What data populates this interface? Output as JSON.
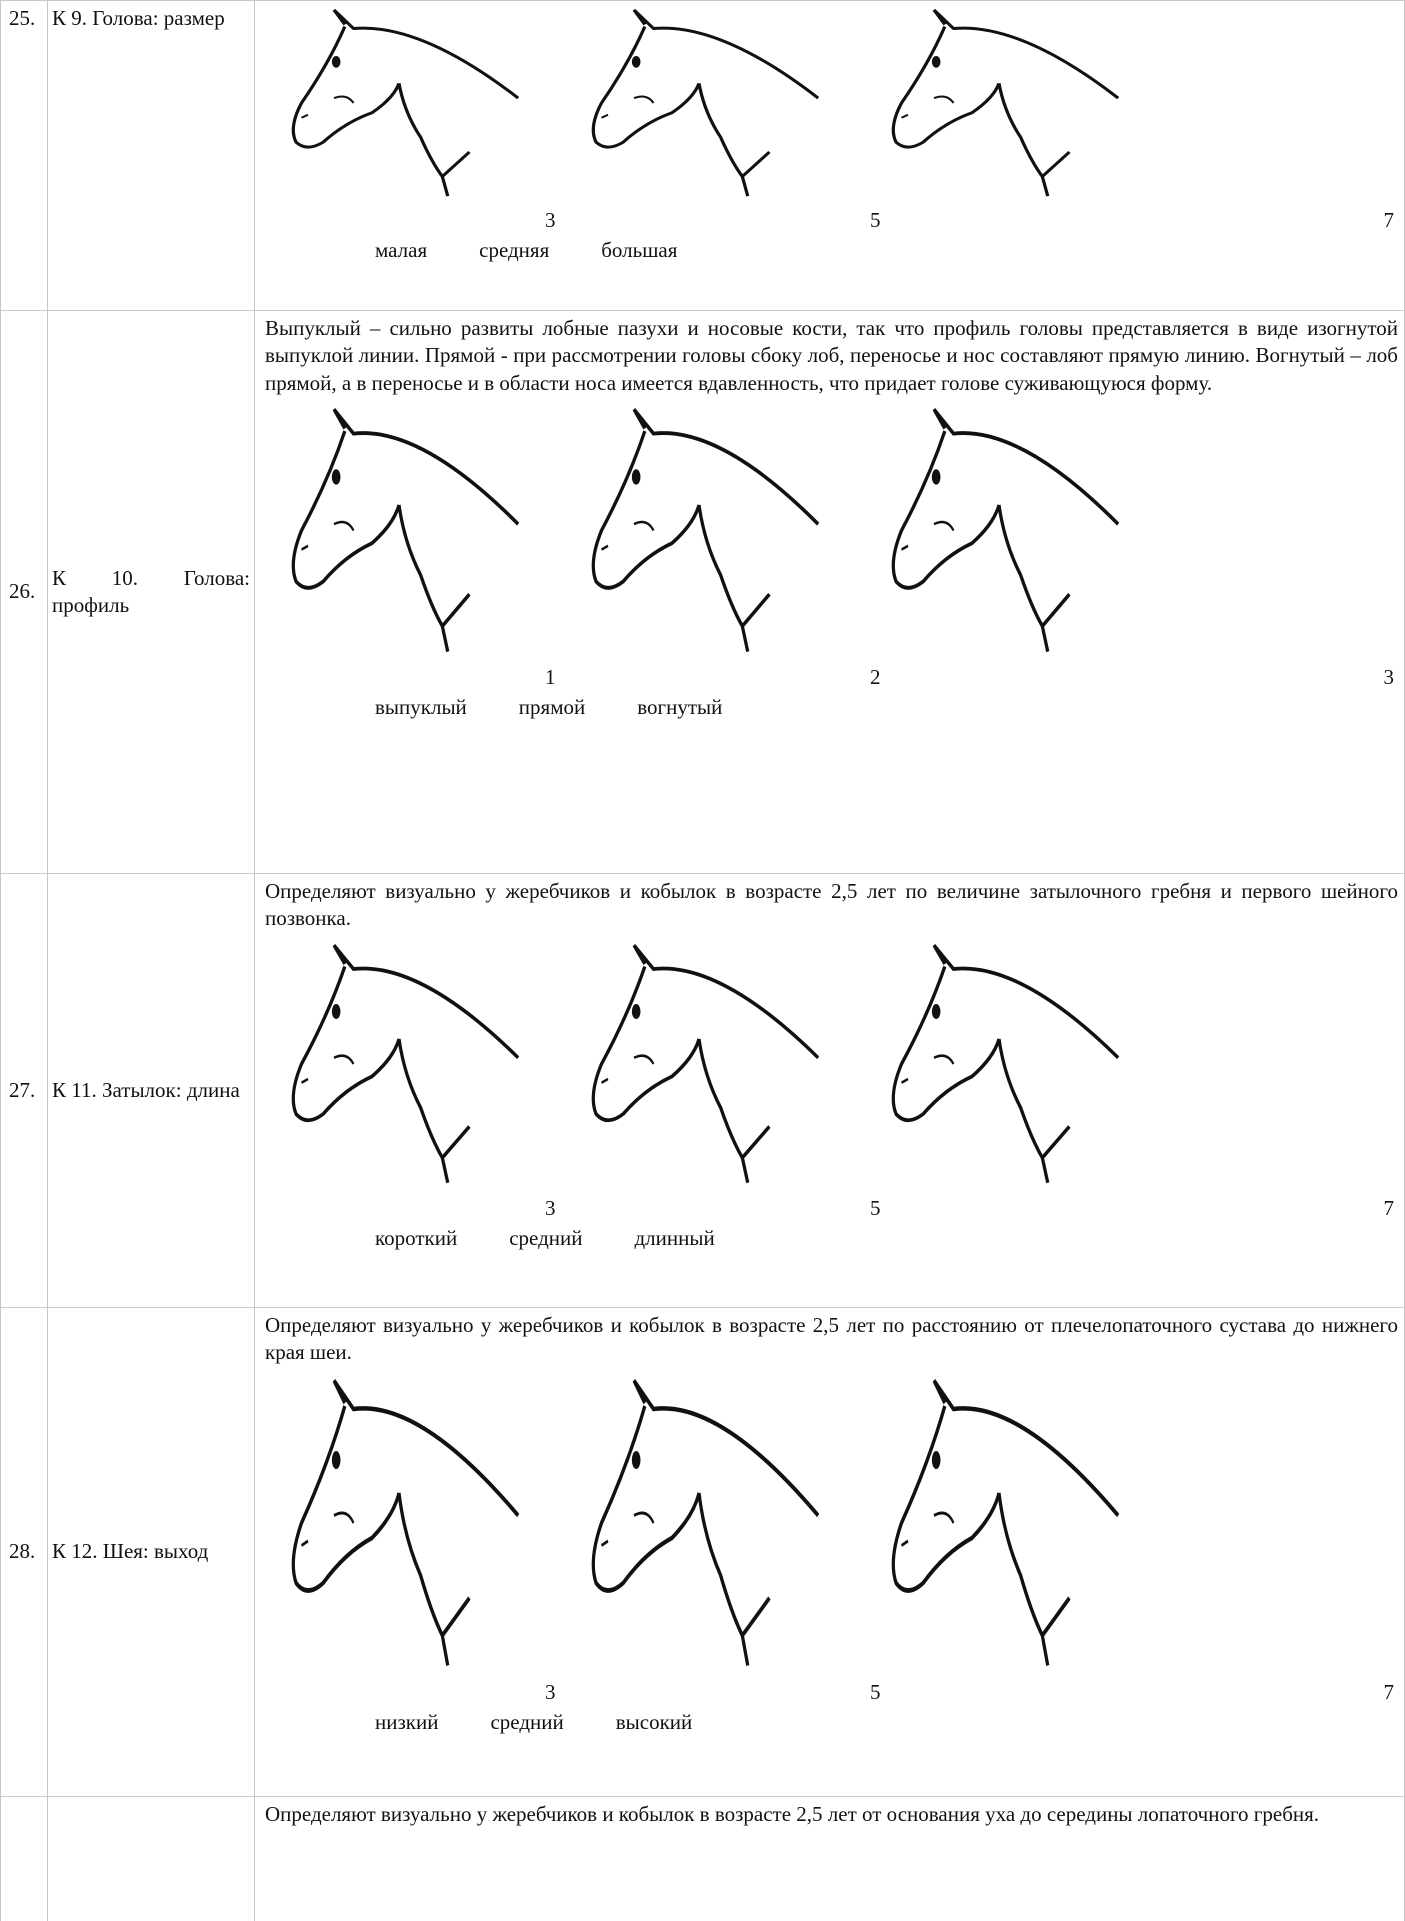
{
  "rows": [
    {
      "number": "25.",
      "label": "К 9. Голова: размер",
      "scores": [
        3,
        5,
        7
      ],
      "grades": [
        "малая",
        "средняя",
        "большая"
      ]
    },
    {
      "number": "26.",
      "label": "К 10. Голова: профиль",
      "description": "Выпуклый – сильно развиты лобные пазухи и носовые кости, так что профиль головы представляется в виде изогнутой выпуклой линии. Прямой - при рассмотрении головы сбоку лоб, переносье и нос составляют прямую линию. Вогнутый – лоб прямой, а в переносье и в области носа имеется вдавленность, что придает голове суживающуюся форму.",
      "scores": [
        1,
        2,
        3
      ],
      "grades": [
        "выпуклый",
        "прямой",
        "вогнутый"
      ]
    },
    {
      "number": "27.",
      "label": "К 11. Затылок: длина",
      "description": "Определяют визуально у жеребчиков и кобылок в возрасте 2,5 лет по величине затылочного гребня и первого шейного позвонка.",
      "scores": [
        3,
        5,
        7
      ],
      "grades": [
        "короткий",
        "средний",
        "длинный"
      ]
    },
    {
      "number": "28.",
      "label": "К 12. Шея: выход",
      "description": "Определяют визуально у жеребчиков и кобылок в возрасте 2,5 лет по расстоянию от плечелопаточного сустава до нижнего края шеи.",
      "scores": [
        3,
        5,
        7
      ],
      "grades": [
        "низкий",
        "средний",
        "высокий"
      ]
    },
    {
      "description": "Определяют визуально у жеребчиков и кобылок в возрасте 2,5 лет от основания уха до середины лопаточного гребня."
    }
  ]
}
